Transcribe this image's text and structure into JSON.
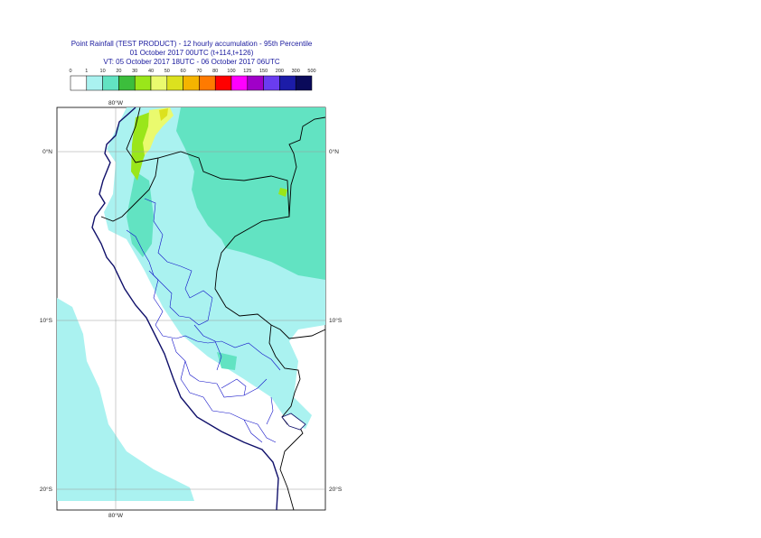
{
  "title": {
    "line1": "Point Rainfall (TEST PRODUCT) - 12 hourly accumulation - 95th Percentile",
    "line2": "01 October 2017 00UTC (t+114,t+126)",
    "line3": "VT: 05 October 2017 18UTC - 06 October 2017 06UTC"
  },
  "legend": {
    "thresholds": [
      "0",
      "1",
      "10",
      "20",
      "30",
      "40",
      "50",
      "60",
      "70",
      "80",
      "100",
      "125",
      "150",
      "200",
      "300",
      "500"
    ],
    "colors": [
      "#ffffff",
      "#aaf2f0",
      "#62e3c2",
      "#3cbe3c",
      "#9ae61a",
      "#eafa6e",
      "#dce11e",
      "#f5b400",
      "#ff7a00",
      "#ff0000",
      "#ff00ff",
      "#a000c8",
      "#6a3cf0",
      "#1c1ca8",
      "#0a0a5a"
    ]
  },
  "map": {
    "lon_label_top": "80°W",
    "lon_label_bottom": "80°W",
    "lat_labels": [
      "0°N",
      "10°S",
      "20°S"
    ]
  }
}
